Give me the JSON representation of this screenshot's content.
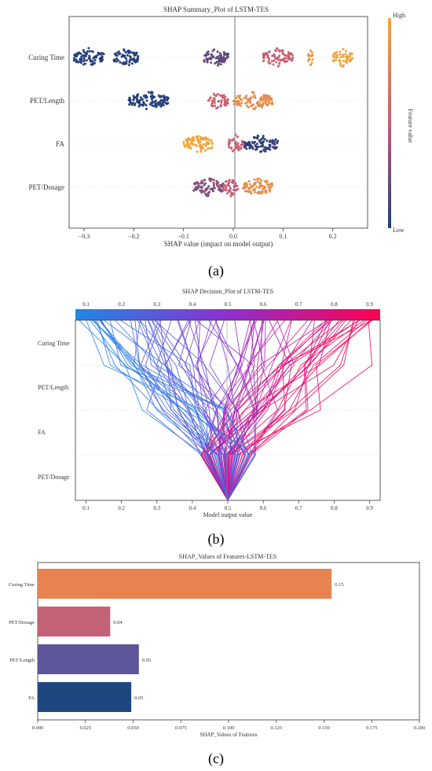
{
  "captions": [
    "(a)",
    "(b)",
    "(c)"
  ],
  "chart_data": [
    {
      "type": "scatter",
      "title": "SHAP Summary_Plot of LSTM-TES",
      "xlabel": "SHAP value (impact on model output)",
      "x_ticks": [
        "−0.3",
        "−0.2",
        "−0.1",
        "0.0",
        "0.1",
        "0.2"
      ],
      "xlim": [
        -0.33,
        0.27
      ],
      "features": [
        "Curing Time",
        "PET/Length",
        "FA",
        "PET/Dosage"
      ],
      "colorbar": {
        "label": "Feature value",
        "high": "High",
        "low": "Low",
        "high_color": "#f3a73b",
        "mid_color": "#c55a7a",
        "low_color": "#1f3f7a"
      },
      "clusters": [
        {
          "feature": "Curing Time",
          "ranges": [
            [
              -0.32,
              -0.26,
              0.0
            ],
            [
              -0.24,
              -0.19,
              0.0
            ],
            [
              -0.06,
              -0.01,
              0.2
            ],
            [
              0.06,
              0.12,
              0.55
            ],
            [
              0.15,
              0.16,
              0.9
            ],
            [
              0.2,
              0.24,
              1.0
            ]
          ]
        },
        {
          "feature": "PET/Length",
          "ranges": [
            [
              -0.21,
              -0.13,
              0.0
            ],
            [
              -0.05,
              -0.01,
              0.55
            ],
            [
              0.0,
              0.08,
              0.85
            ]
          ]
        },
        {
          "feature": "FA",
          "ranges": [
            [
              -0.1,
              -0.04,
              1.0
            ],
            [
              -0.01,
              0.02,
              0.55
            ],
            [
              0.02,
              0.09,
              0.05
            ]
          ]
        },
        {
          "feature": "PET/Dosage",
          "ranges": [
            [
              -0.08,
              -0.02,
              0.3
            ],
            [
              -0.02,
              0.01,
              0.5
            ],
            [
              0.02,
              0.08,
              0.85
            ]
          ]
        }
      ]
    },
    {
      "type": "line",
      "title": "SHAP Decision_Plot of LSTM-TES",
      "xlabel": "Model output value",
      "x_ticks": [
        "0.1",
        "0.2",
        "0.3",
        "0.4",
        "0.5",
        "0.6",
        "0.7",
        "0.8",
        "0.9"
      ],
      "xlim": [
        0.07,
        0.93
      ],
      "base_value": 0.5,
      "features": [
        "Curing Time",
        "PET/Length",
        "FA",
        "PET/Dosage"
      ],
      "colors": {
        "low": "#1e88e5",
        "mid": "#8e2fd0",
        "high": "#ff0052"
      }
    },
    {
      "type": "bar",
      "orientation": "horizontal",
      "title": "SHAP_Values of Features-LSTM-TES",
      "xlabel": "SHAP_Values of Features",
      "categories": [
        "Curing Time",
        "PET/Dosage",
        "PET/Length",
        "FA"
      ],
      "values": [
        0.154,
        0.038,
        0.053,
        0.049
      ],
      "data_labels": [
        "0.15",
        "0.04",
        "0.05",
        "0.05"
      ],
      "colors": [
        "#e8834f",
        "#c36276",
        "#5d569a",
        "#1e4780"
      ],
      "x_ticks": [
        "0.000",
        "0.025",
        "0.050",
        "0.075",
        "0.100",
        "0.125",
        "0.150",
        "0.175",
        "0.200"
      ],
      "xlim": [
        0,
        0.2
      ]
    }
  ]
}
